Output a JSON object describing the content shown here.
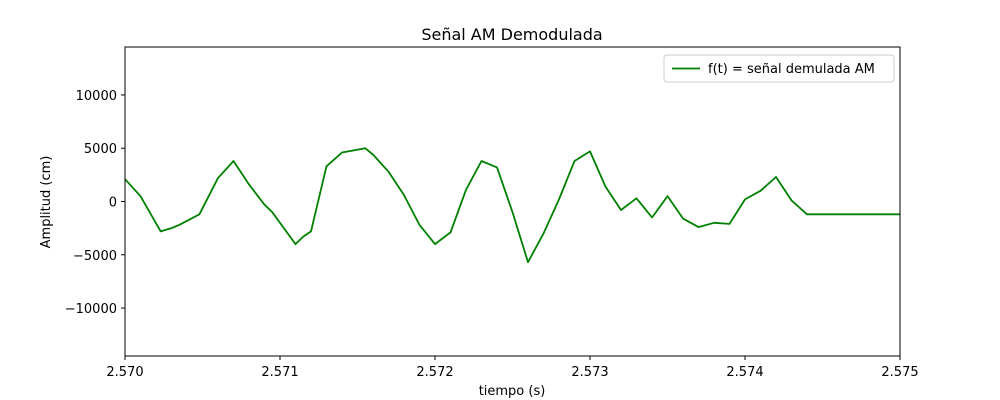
{
  "chart_data": {
    "type": "line",
    "title": "Señal AM Demodulada",
    "xlabel": "tiempo (s)",
    "ylabel": "Amplitud (cm)",
    "xlim": [
      2.57,
      2.575
    ],
    "ylim": [
      -14500,
      14500
    ],
    "x_ticks": [
      2.57,
      2.571,
      2.572,
      2.573,
      2.574,
      2.575
    ],
    "x_tick_labels": [
      "2.570",
      "2.571",
      "2.572",
      "2.573",
      "2.574",
      "2.575"
    ],
    "y_ticks": [
      -10000,
      -5000,
      0,
      5000,
      10000
    ],
    "y_tick_labels": [
      "−10000",
      "−5000",
      "0",
      "5000",
      "10000"
    ],
    "grid": false,
    "legend_position": "top-right",
    "series": [
      {
        "name": "f(t) = señal demulada AM",
        "color": "#008000",
        "x": [
          2.57,
          2.5701,
          2.57023,
          2.5703,
          2.57035,
          2.57048,
          2.5706,
          2.5707,
          2.5708,
          2.5709,
          2.57095,
          2.5711,
          2.57115,
          2.5712,
          2.5713,
          2.5714,
          2.57155,
          2.5716,
          2.5717,
          2.5718,
          2.5719,
          2.572,
          2.5721,
          2.5722,
          2.5723,
          2.5724,
          2.5725,
          2.5726,
          2.5727,
          2.5728,
          2.5729,
          2.573,
          2.5731,
          2.5732,
          2.5733,
          2.5734,
          2.5735,
          2.5736,
          2.5737,
          2.5738,
          2.5739,
          2.574,
          2.5741,
          2.5742,
          2.5743,
          2.5744,
          2.5745,
          2.5746,
          2.5747,
          2.5748,
          2.5749,
          2.575
        ],
        "values": [
          2100,
          500,
          -2800,
          -2500,
          -2200,
          -1200,
          2200,
          3800,
          1600,
          -300,
          -1000,
          -4000,
          -3300,
          -2800,
          3300,
          4600,
          5000,
          4400,
          2800,
          600,
          -2200,
          -4000,
          -2900,
          1100,
          3800,
          3200,
          -1000,
          -5700,
          -3000,
          200,
          3800,
          4700,
          1400,
          -800,
          300,
          -1500,
          500,
          -1600,
          -2400,
          -2000,
          -2100,
          200,
          1000,
          2300,
          100,
          -1200,
          -1200,
          -1200,
          -1200,
          -1200,
          -1200,
          -1200
        ]
      }
    ]
  }
}
